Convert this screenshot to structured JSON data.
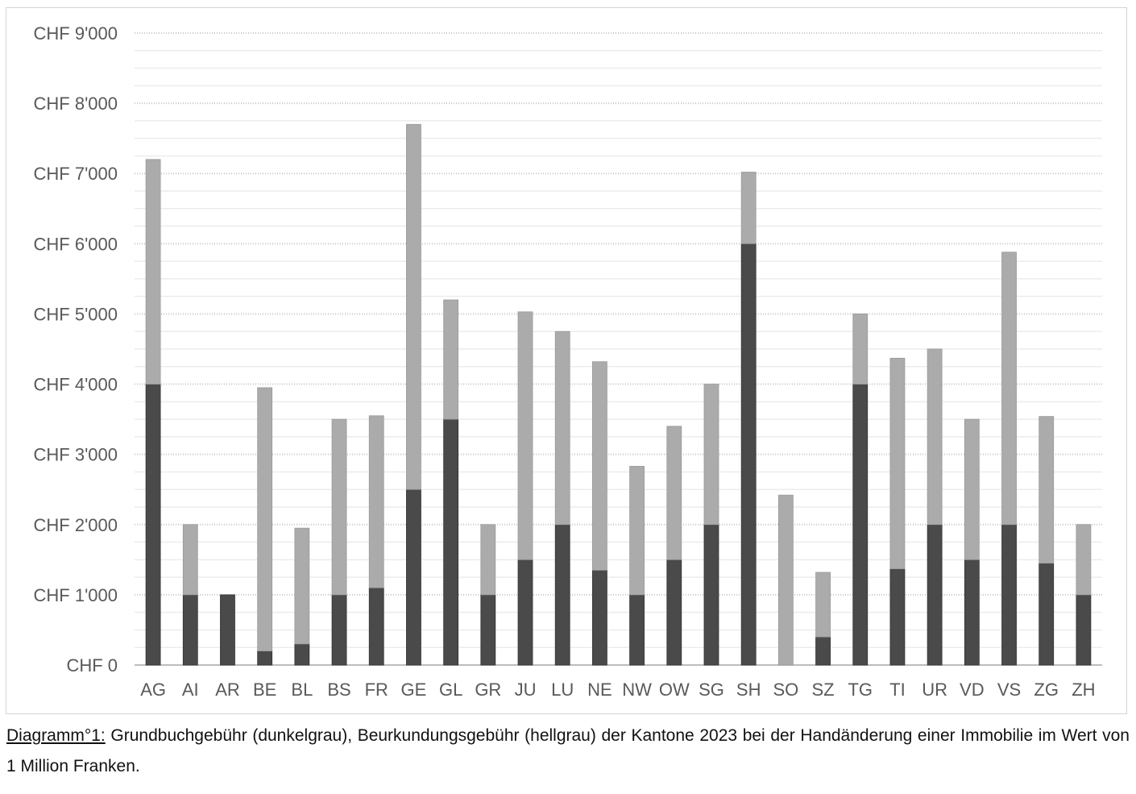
{
  "chart_data": {
    "type": "bar",
    "stacked": true,
    "categories": [
      "AG",
      "AI",
      "AR",
      "BE",
      "BL",
      "BS",
      "FR",
      "GE",
      "GL",
      "GR",
      "JU",
      "LU",
      "NE",
      "NW",
      "OW",
      "SG",
      "SH",
      "SO",
      "SZ",
      "TG",
      "TI",
      "UR",
      "VD",
      "VS",
      "ZG",
      "ZH"
    ],
    "series": [
      {
        "name": "Grundbuchgebühr",
        "color": "#4a4a4a",
        "values": [
          4000,
          1000,
          1000,
          200,
          300,
          1000,
          1100,
          2500,
          3500,
          1000,
          1500,
          2000,
          1350,
          1000,
          1500,
          2000,
          6000,
          0,
          400,
          4000,
          1370,
          2000,
          1500,
          2000,
          1450,
          1000
        ]
      },
      {
        "name": "Beurkundungsgebühr",
        "color": "#ababab",
        "values": [
          3200,
          1000,
          0,
          3750,
          1650,
          2500,
          2450,
          5200,
          1700,
          1000,
          3530,
          2750,
          2970,
          1830,
          1900,
          2000,
          1020,
          2420,
          920,
          1000,
          3000,
          2500,
          2000,
          3880,
          2090,
          1000
        ]
      }
    ],
    "y_ticks": [
      "CHF 0",
      "CHF 1'000",
      "CHF 2'000",
      "CHF 3'000",
      "CHF 4'000",
      "CHF 5'000",
      "CHF 6'000",
      "CHF 7'000",
      "CHF 8'000",
      "CHF 9'000"
    ],
    "ylim": [
      0,
      9000
    ],
    "grid": true,
    "legend": "none"
  },
  "caption": {
    "label": "Diagramm°1:",
    "text": " Grundbuchgebühr (dunkelgrau), Beurkundungsgebühr (hellgrau) der Kantone 2023 bei der Handänderung einer Immobilie im Wert von 1 Million Franken."
  }
}
